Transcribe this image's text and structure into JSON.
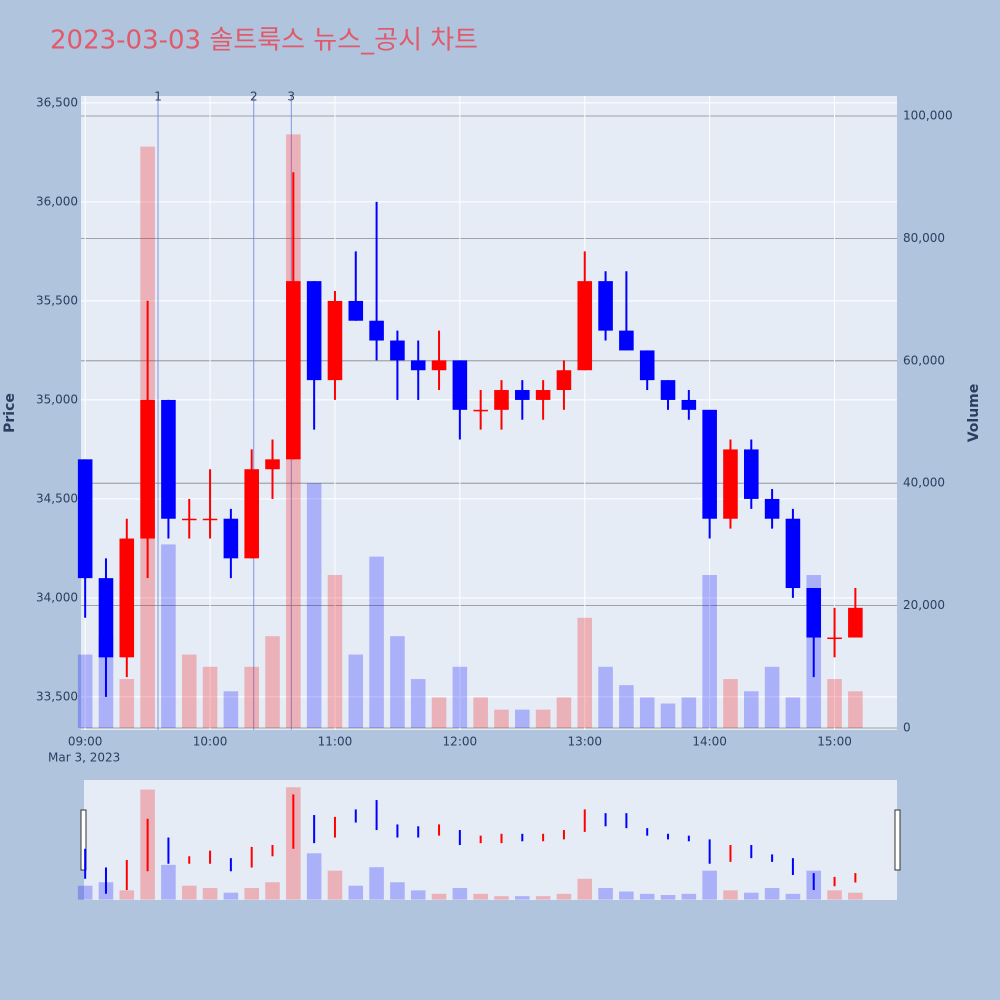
{
  "chart_data": {
    "type": "candlestick",
    "title": "2023-03-03 솔트룩스 뉴스_공시 차트",
    "y_label": "Price",
    "y2_label": "Volume",
    "x_date_label": "Mar 3, 2023",
    "x": [
      "09:00",
      "09:10",
      "09:20",
      "09:30",
      "09:40",
      "09:50",
      "10:00",
      "10:10",
      "10:20",
      "10:30",
      "10:40",
      "10:50",
      "11:00",
      "11:10",
      "11:20",
      "11:30",
      "11:40",
      "11:50",
      "12:00",
      "12:10",
      "12:20",
      "12:30",
      "12:40",
      "12:50",
      "13:00",
      "13:10",
      "13:20",
      "13:30",
      "13:40",
      "13:50",
      "14:00",
      "14:10",
      "14:20",
      "14:30",
      "14:40",
      "14:50",
      "15:00",
      "15:10"
    ],
    "open": [
      34700,
      34100,
      33700,
      34300,
      35000,
      34400,
      34400,
      34400,
      34200,
      34650,
      34700,
      35600,
      35100,
      35500,
      35400,
      35300,
      35200,
      35150,
      35200,
      34950,
      34950,
      35050,
      35000,
      35050,
      35150,
      35600,
      35350,
      35250,
      35100,
      35000,
      34950,
      34400,
      34750,
      34500,
      34400,
      34050,
      33800,
      33800
    ],
    "high": [
      34700,
      34200,
      34400,
      35500,
      35000,
      34500,
      34650,
      34450,
      34750,
      34800,
      36150,
      35600,
      35550,
      35750,
      36000,
      35350,
      35300,
      35350,
      35200,
      35050,
      35100,
      35100,
      35100,
      35200,
      35750,
      35650,
      35650,
      35250,
      35100,
      35050,
      34950,
      34800,
      34800,
      34550,
      34450,
      34050,
      33950,
      34050
    ],
    "low": [
      33900,
      33500,
      33600,
      34100,
      34300,
      34300,
      34300,
      34100,
      34200,
      34500,
      34700,
      34850,
      35000,
      35400,
      35200,
      35000,
      35000,
      35050,
      34800,
      34850,
      34850,
      34900,
      34900,
      34950,
      35150,
      35300,
      35250,
      35050,
      34950,
      34900,
      34300,
      34350,
      34450,
      34350,
      34000,
      33600,
      33700,
      33800
    ],
    "close": [
      34100,
      33700,
      34300,
      35000,
      34400,
      34400,
      34400,
      34200,
      34650,
      34700,
      35600,
      35100,
      35500,
      35400,
      35300,
      35200,
      35150,
      35200,
      34950,
      34950,
      35050,
      35000,
      35050,
      35150,
      35600,
      35350,
      35250,
      35100,
      35000,
      34950,
      34400,
      34750,
      34500,
      34400,
      34050,
      33800,
      33800,
      33950
    ],
    "volume": [
      12000,
      15000,
      8000,
      95000,
      30000,
      12000,
      10000,
      6000,
      10000,
      15000,
      97000,
      40000,
      25000,
      12000,
      28000,
      15000,
      8000,
      5000,
      10000,
      5000,
      3000,
      3000,
      3000,
      5000,
      18000,
      10000,
      7000,
      5000,
      4000,
      5000,
      25000,
      8000,
      6000,
      10000,
      5000,
      25000,
      8000,
      6000
    ],
    "up_color": "#ff0000",
    "down_color": "#0000ff",
    "xlim": [
      "08:58",
      "15:30"
    ],
    "xticks": [
      "09:00",
      "10:00",
      "11:00",
      "12:00",
      "13:00",
      "14:00",
      "15:00"
    ],
    "ylim": [
      33333,
      36535
    ],
    "yticks": [
      {
        "value": 33500,
        "label": "33,500"
      },
      {
        "value": 34000,
        "label": "34,000"
      },
      {
        "value": 34500,
        "label": "34,500"
      },
      {
        "value": 35000,
        "label": "35,000"
      },
      {
        "value": 35500,
        "label": "35,500"
      },
      {
        "value": 36000,
        "label": "36,000"
      },
      {
        "value": 36500,
        "label": "36,500"
      }
    ],
    "y2lim": [
      -327,
      103268
    ],
    "y2ticks": [
      0,
      {
        "value": 20000,
        "label": "20,000"
      },
      {
        "value": 40000,
        "label": "40,000"
      },
      {
        "value": 60000,
        "label": "60,000"
      },
      {
        "value": 80000,
        "label": "80,000"
      },
      {
        "value": 100000,
        "label": "100,000"
      }
    ],
    "annotations": [
      {
        "x": "09:35",
        "label": "1"
      },
      {
        "x": "10:21",
        "label": "2"
      },
      {
        "x": "10:39",
        "label": "3"
      }
    ]
  }
}
